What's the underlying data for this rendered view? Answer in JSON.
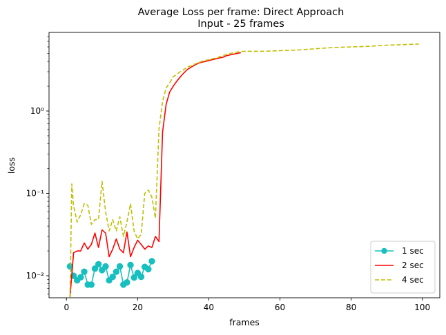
{
  "chart_data": {
    "type": "line",
    "title": "Average Loss per frame: Direct Approach",
    "subtitle": "Input - 25 frames",
    "xlabel": "frames",
    "ylabel": "loss",
    "xlim": [
      -4.9,
      104.9
    ],
    "ylim": [
      0.0054,
      9.0
    ],
    "yscale": "log",
    "grid": false,
    "legend_position": "lower-right",
    "x_ticks": [
      0,
      20,
      40,
      60,
      80,
      100
    ],
    "x_tick_labels": [
      "0",
      "20",
      "40",
      "60",
      "80",
      "100"
    ],
    "y_ticks": [
      0.01,
      0.1,
      1
    ],
    "y_tick_labels": [
      "10⁻²",
      "10⁻¹",
      "10⁰"
    ],
    "series": [
      {
        "name": "1 sec",
        "color": "#17bfbf",
        "style": "solid-markers",
        "x": [
          1,
          2,
          3,
          4,
          5,
          6,
          7,
          8,
          9,
          10,
          11,
          12,
          13,
          14,
          15,
          16,
          17,
          18,
          19,
          20,
          21,
          22,
          23,
          24
        ],
        "y": [
          0.013,
          0.01,
          0.0088,
          0.0096,
          0.0112,
          0.0078,
          0.0078,
          0.0122,
          0.0138,
          0.0117,
          0.013,
          0.0088,
          0.0097,
          0.0112,
          0.013,
          0.0078,
          0.0083,
          0.0135,
          0.0095,
          0.0108,
          0.0097,
          0.0128,
          0.012,
          0.015
        ]
      },
      {
        "name": "2 sec",
        "color": "#ff0000",
        "style": "solid",
        "x": [
          1,
          2,
          3,
          4,
          5,
          6,
          7,
          8,
          9,
          10,
          11,
          12,
          13,
          14,
          15,
          16,
          17,
          18,
          19,
          20,
          21,
          22,
          23,
          24,
          25,
          26,
          27,
          28,
          29,
          30,
          31,
          32,
          33,
          34,
          35,
          36,
          37,
          38,
          39,
          40,
          41,
          42,
          43,
          44,
          45,
          46,
          47,
          48,
          49
        ],
        "y": [
          0.0055,
          0.019,
          0.02,
          0.02,
          0.025,
          0.021,
          0.024,
          0.033,
          0.022,
          0.036,
          0.033,
          0.017,
          0.021,
          0.028,
          0.021,
          0.019,
          0.034,
          0.017,
          0.022,
          0.027,
          0.024,
          0.021,
          0.023,
          0.022,
          0.03,
          0.026,
          0.55,
          1.2,
          1.7,
          2.0,
          2.3,
          2.6,
          2.9,
          3.2,
          3.4,
          3.6,
          3.8,
          3.9,
          4.0,
          4.1,
          4.2,
          4.3,
          4.4,
          4.5,
          4.7,
          4.8,
          4.9,
          5.0,
          5.1
        ]
      },
      {
        "name": "4 sec",
        "color": "#bfbf00",
        "style": "dashed",
        "x": [
          1,
          1.5,
          2,
          3,
          4,
          5,
          6,
          7,
          8,
          9,
          10,
          11,
          12,
          13,
          14,
          15,
          16,
          17,
          18,
          19,
          20,
          21,
          22,
          23,
          24,
          25,
          26,
          27,
          28,
          29,
          30,
          32,
          34,
          36,
          38,
          40,
          42,
          44,
          46,
          48,
          50,
          55,
          60,
          65,
          70,
          75,
          80,
          85,
          90,
          95,
          99
        ],
        "y": [
          0.0055,
          0.13,
          0.07,
          0.045,
          0.055,
          0.075,
          0.072,
          0.042,
          0.048,
          0.048,
          0.14,
          0.06,
          0.035,
          0.048,
          0.035,
          0.052,
          0.03,
          0.045,
          0.075,
          0.035,
          0.028,
          0.032,
          0.1,
          0.11,
          0.09,
          0.05,
          0.6,
          1.3,
          1.9,
          2.2,
          2.6,
          3.0,
          3.4,
          3.7,
          4.0,
          4.2,
          4.4,
          4.7,
          5.0,
          5.2,
          5.3,
          5.3,
          5.4,
          5.5,
          5.7,
          5.9,
          6.0,
          6.1,
          6.3,
          6.4,
          6.5
        ]
      }
    ]
  }
}
